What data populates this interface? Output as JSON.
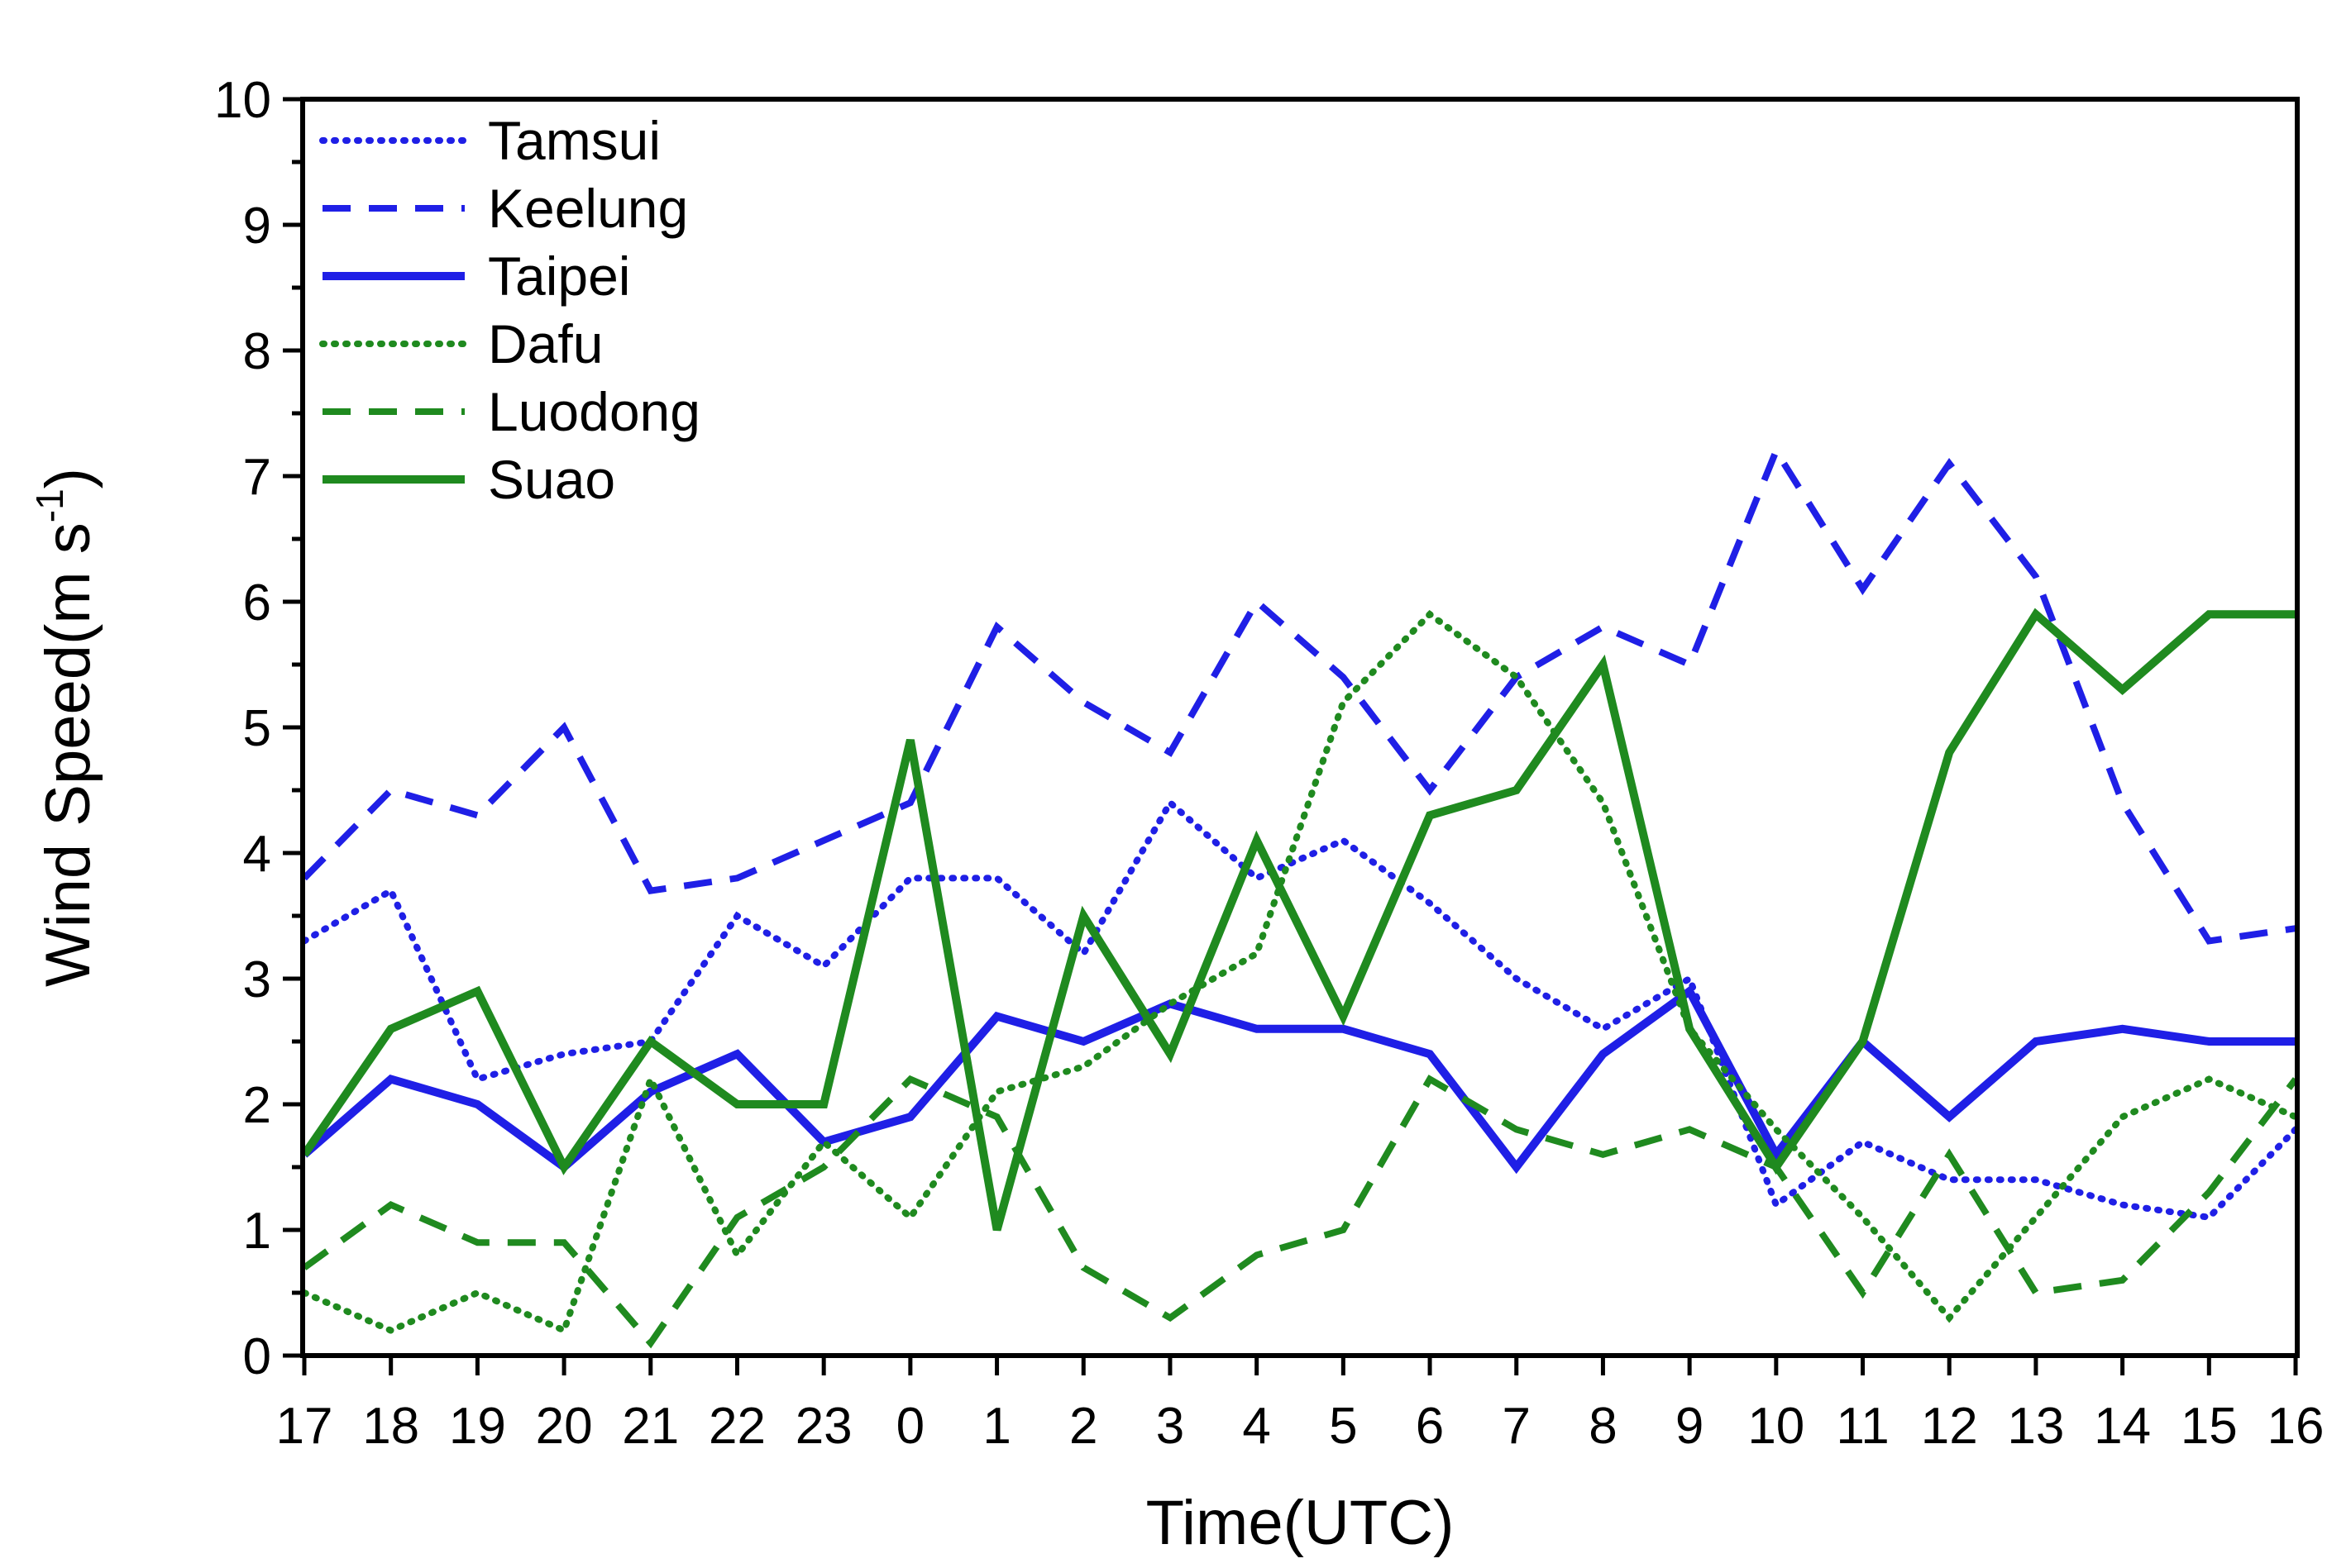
{
  "chart_data": {
    "type": "line",
    "title": "",
    "xlabel": "Time(UTC)",
    "ylabel": "Wind Speed(m s",
    "ylabel_sup": "-1",
    "ylabel_close": ")",
    "ylim": [
      0,
      10
    ],
    "yticks": [
      "0",
      "1",
      "2",
      "3",
      "4",
      "5",
      "6",
      "7",
      "8",
      "9",
      "10"
    ],
    "categories": [
      "17",
      "18",
      "19",
      "20",
      "21",
      "22",
      "23",
      "0",
      "1",
      "2",
      "3",
      "4",
      "5",
      "6",
      "7",
      "8",
      "9",
      "10",
      "11",
      "12",
      "13",
      "14",
      "15",
      "16"
    ],
    "legend_position": "top-left",
    "series": [
      {
        "name": "Tamsui",
        "color": "#1f1fe6",
        "style": "dotted",
        "values": [
          3.3,
          3.7,
          2.2,
          2.4,
          2.5,
          3.5,
          3.1,
          3.8,
          3.8,
          3.2,
          4.4,
          3.8,
          4.1,
          3.6,
          3.0,
          2.6,
          3.0,
          1.2,
          1.7,
          1.4,
          1.4,
          1.2,
          1.1,
          1.8
        ]
      },
      {
        "name": "Keelung",
        "color": "#1f1fe6",
        "style": "dashed",
        "values": [
          3.8,
          4.5,
          4.3,
          5.0,
          3.7,
          3.8,
          4.1,
          4.4,
          5.8,
          5.2,
          4.8,
          6.0,
          5.4,
          4.5,
          5.4,
          5.8,
          5.5,
          7.2,
          6.1,
          7.1,
          6.2,
          4.4,
          3.3,
          3.4
        ]
      },
      {
        "name": "Taipei",
        "color": "#1f1fe6",
        "style": "solid",
        "values": [
          1.6,
          2.2,
          2.0,
          1.5,
          2.1,
          2.4,
          1.7,
          1.9,
          2.7,
          2.5,
          2.8,
          2.6,
          2.6,
          2.4,
          1.5,
          2.4,
          2.9,
          1.6,
          2.5,
          1.9,
          2.5,
          2.6,
          2.5,
          2.5
        ]
      },
      {
        "name": "Dafu",
        "color": "#1f8a1f",
        "style": "dotted",
        "values": [
          0.5,
          0.2,
          0.5,
          0.2,
          2.2,
          0.8,
          1.7,
          1.1,
          2.1,
          2.3,
          2.8,
          3.2,
          5.2,
          5.9,
          5.4,
          4.4,
          2.6,
          1.8,
          1.1,
          0.3,
          1.1,
          1.9,
          2.2,
          1.9
        ]
      },
      {
        "name": "Luodong",
        "color": "#1f8a1f",
        "style": "dashed",
        "values": [
          0.7,
          1.2,
          0.9,
          0.9,
          0.1,
          1.1,
          1.5,
          2.2,
          1.9,
          0.7,
          0.3,
          0.8,
          1.0,
          2.2,
          1.8,
          1.6,
          1.8,
          1.5,
          0.5,
          1.6,
          0.5,
          0.6,
          1.3,
          2.2
        ]
      },
      {
        "name": "Suao",
        "color": "#1f8a1f",
        "style": "solid",
        "values": [
          1.6,
          2.6,
          2.9,
          1.5,
          2.5,
          2.0,
          2.0,
          4.9,
          1.0,
          3.5,
          2.4,
          4.1,
          2.7,
          4.3,
          4.5,
          5.5,
          2.6,
          1.5,
          2.5,
          4.8,
          5.9,
          5.3,
          5.9,
          5.9
        ]
      }
    ]
  }
}
